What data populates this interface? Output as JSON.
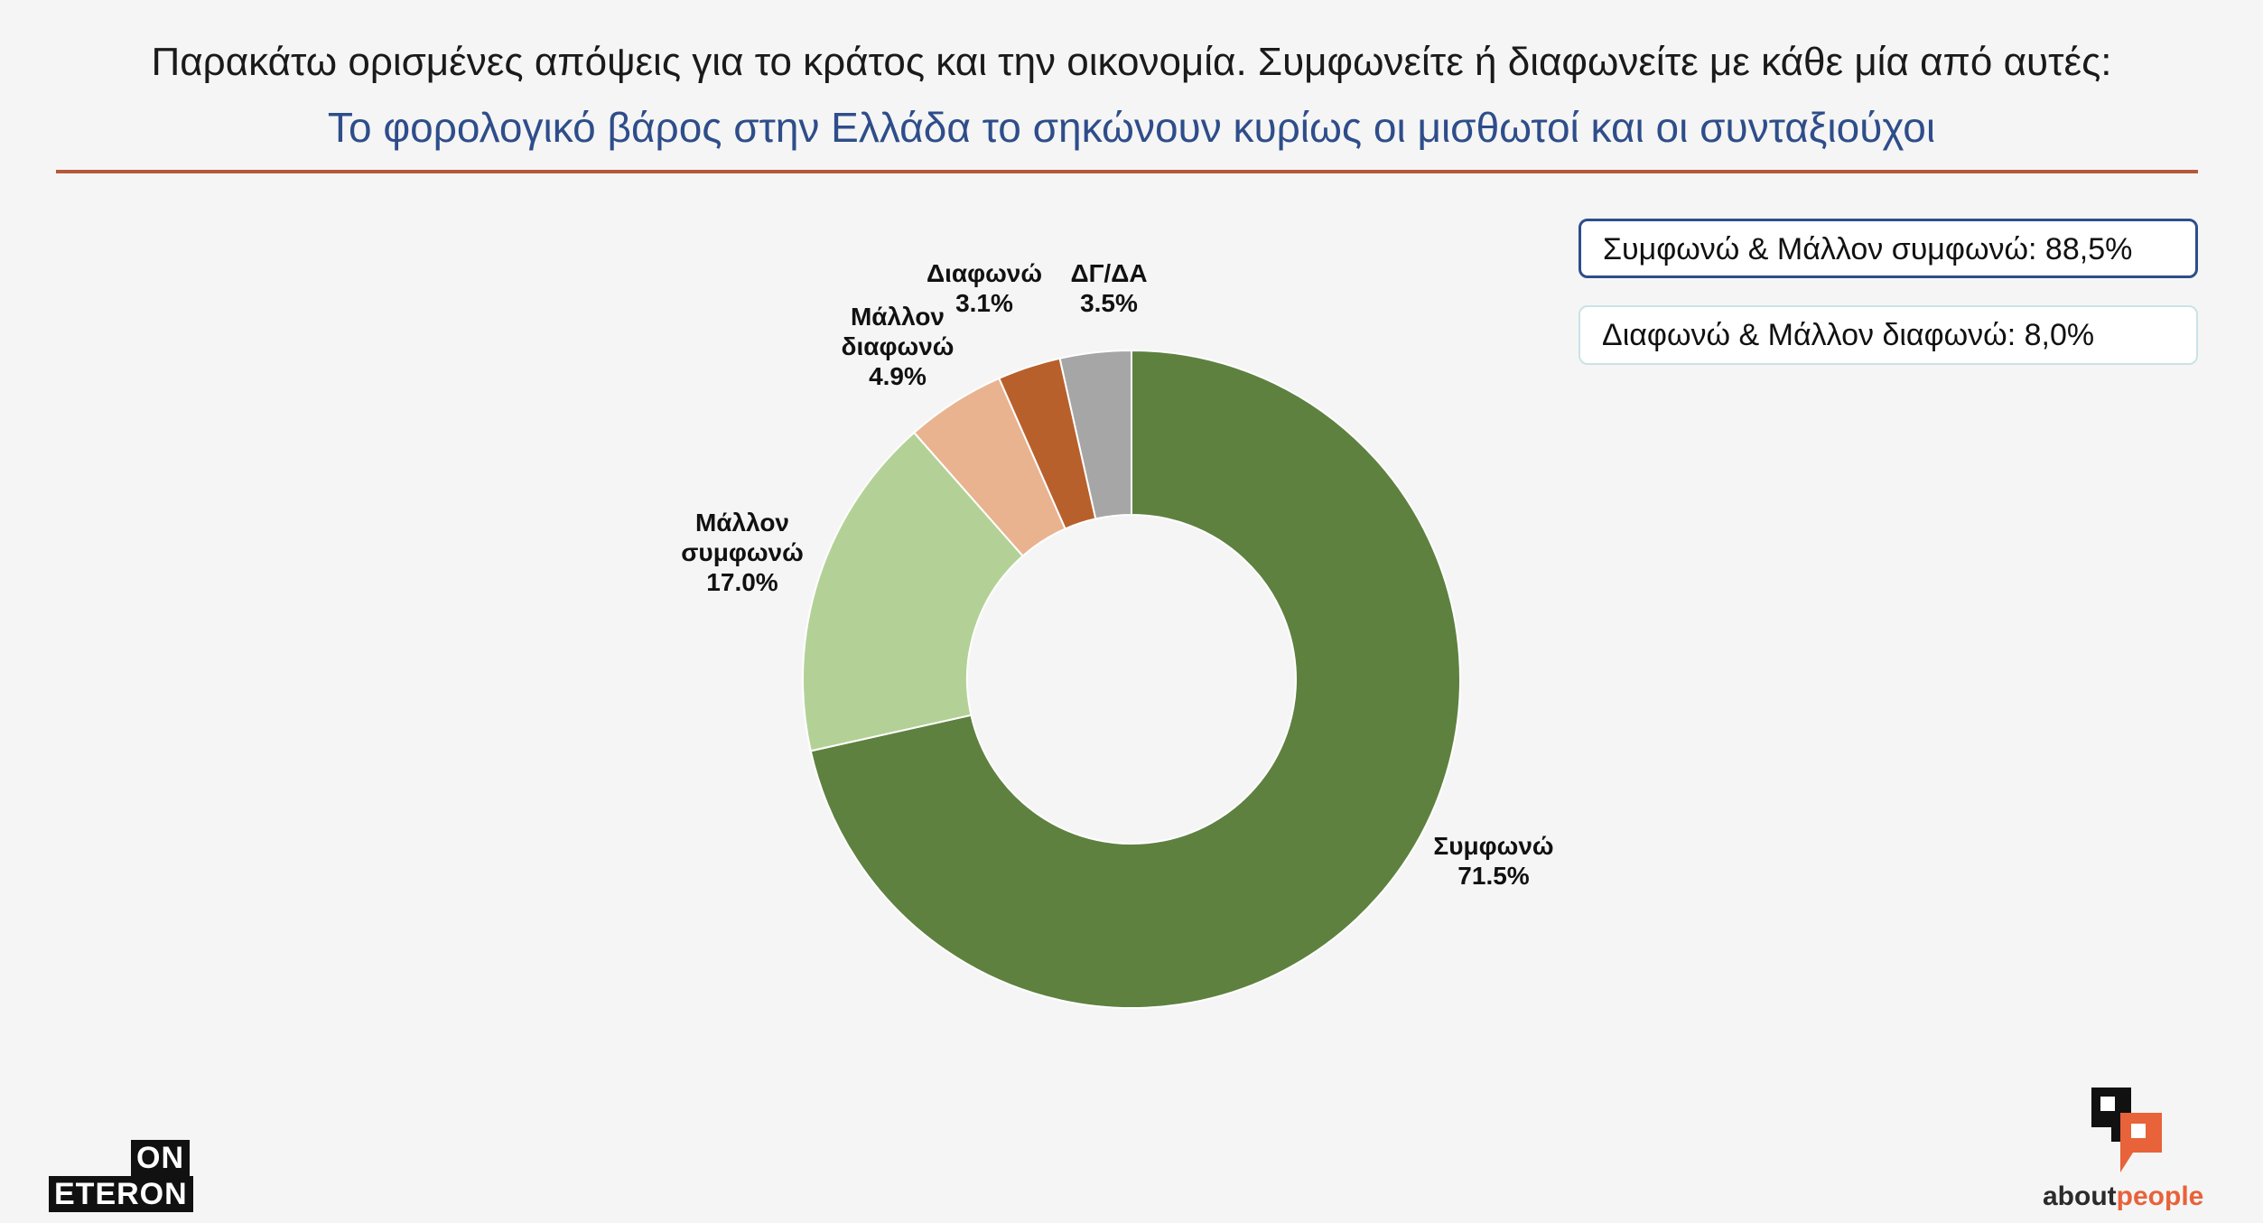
{
  "header": {
    "title": "Παρακάτω ορισμένες απόψεις για το κράτος και την οικονομία. Συμφωνείτε ή διαφωνείτε με κάθε μία από αυτές:",
    "subtitle": "Το φορολογικό βάρος στην Ελλάδα το σηκώνουν κυρίως οι μισθωτοί και οι συνταξιούχοι"
  },
  "summary": {
    "agree_total": "Συμφωνώ & Μάλλον συμφωνώ: 88,5%",
    "disagree_total": "Διαφωνώ & Μάλλον διαφωνώ: 8,0%"
  },
  "logos": {
    "left_top": "ON",
    "left_bottom": "ETERON",
    "right_about": "about",
    "right_people": "people"
  },
  "chart_data": {
    "type": "pie",
    "variant": "donut",
    "start_angle_deg": 0,
    "direction": "clockwise",
    "slices": [
      {
        "label": "Συμφωνώ",
        "label_lines": [
          "Συμφωνώ"
        ],
        "value": 71.5,
        "value_text": "71.5%",
        "color": "#5e8140"
      },
      {
        "label": "Μάλλον συμφωνώ",
        "label_lines": [
          "Μάλλον",
          "συμφωνώ"
        ],
        "value": 17.0,
        "value_text": "17.0%",
        "color": "#b3d196"
      },
      {
        "label": "Μάλλον διαφωνώ",
        "label_lines": [
          "Μάλλον",
          "διαφωνώ"
        ],
        "value": 4.9,
        "value_text": "4.9%",
        "color": "#e9b38f"
      },
      {
        "label": "Διαφωνώ",
        "label_lines": [
          "Διαφωνώ"
        ],
        "value": 3.1,
        "value_text": "3.1%",
        "color": "#b8602c"
      },
      {
        "label": "ΔΓ/ΔΑ",
        "label_lines": [
          "ΔΓ/ΔΑ"
        ],
        "value": 3.5,
        "value_text": "3.5%",
        "color": "#a6a6a6"
      }
    ]
  }
}
